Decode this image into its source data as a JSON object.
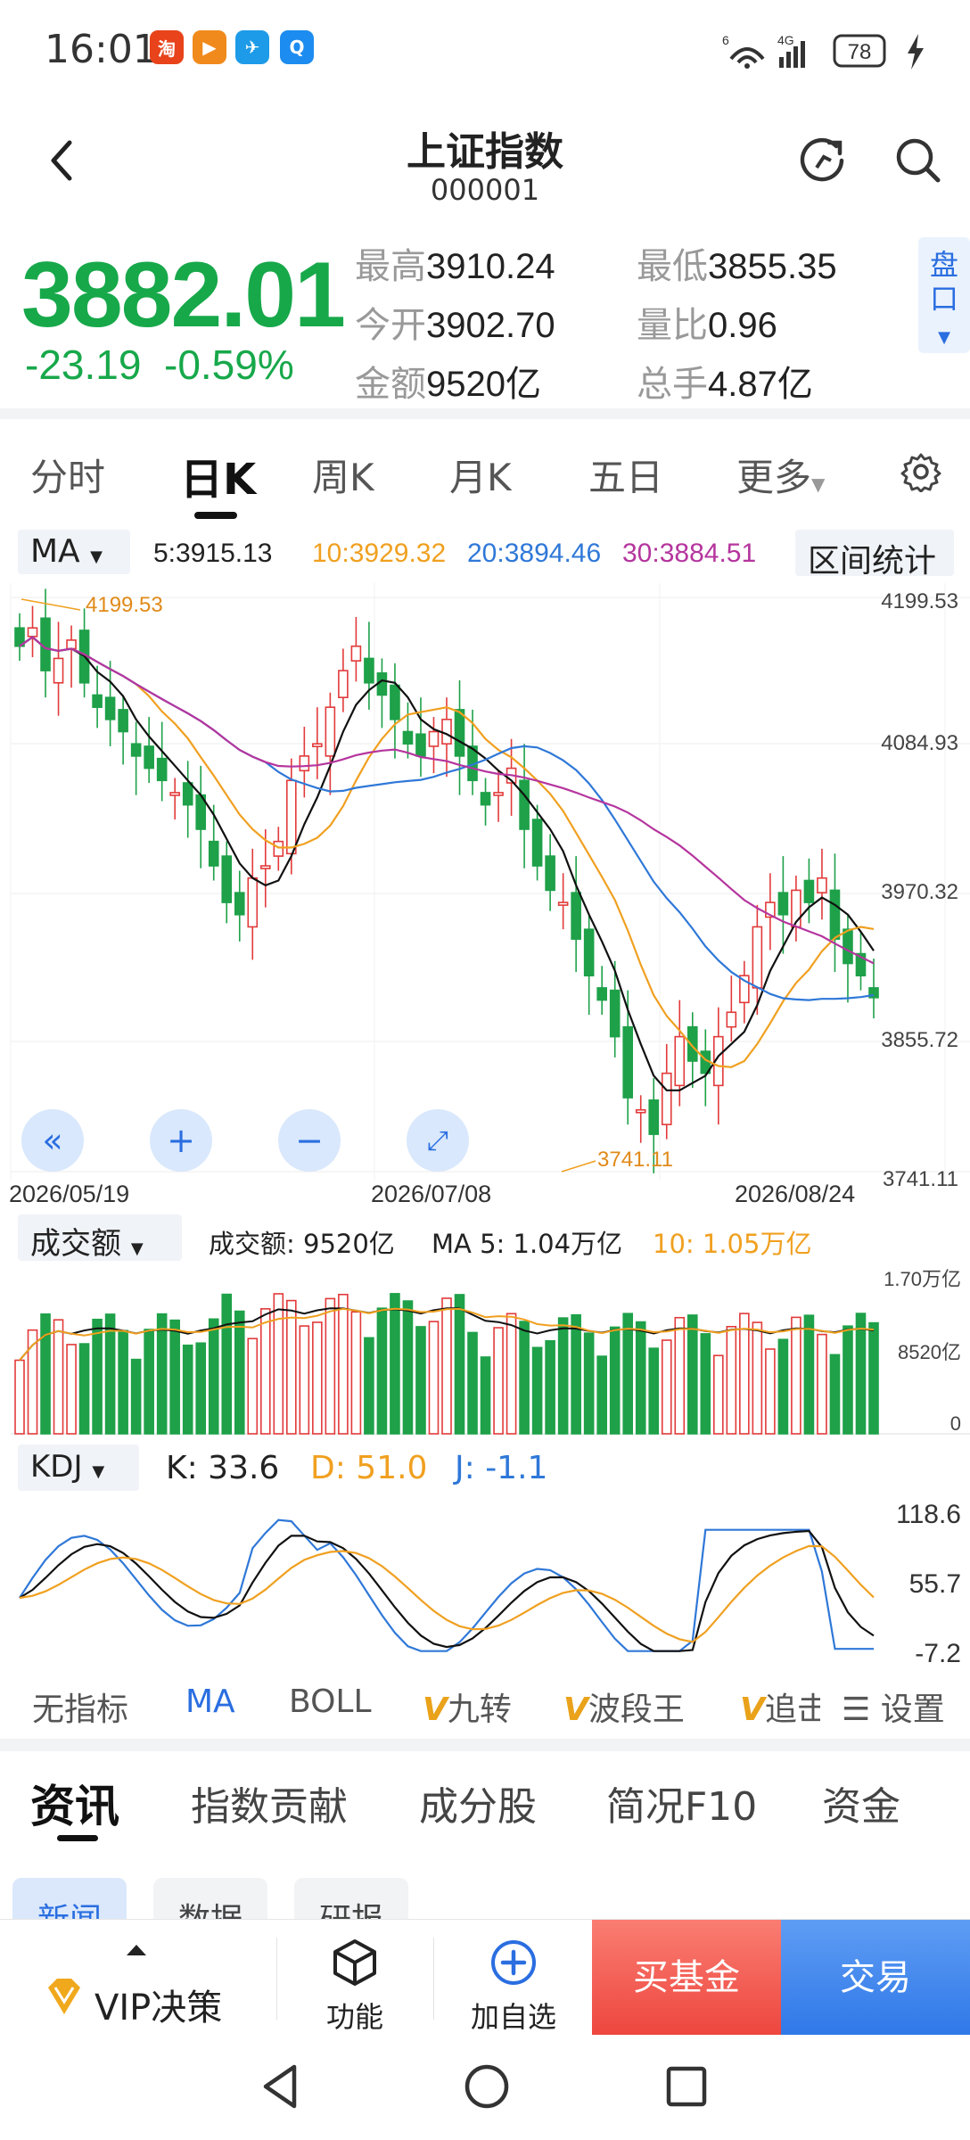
{
  "status_bar": {
    "time": "16:01",
    "network_a": "6",
    "network_b": "4G",
    "battery": "78",
    "apps": [
      {
        "icon": "taobao-app-icon",
        "label": "淘",
        "color": "#e8431a"
      },
      {
        "icon": "video-app-icon",
        "label": "▶",
        "color": "#f08a1c"
      },
      {
        "icon": "paper-plane-app-icon",
        "label": "✈",
        "color": "#1e9be8"
      },
      {
        "icon": "search-app-icon",
        "label": "Q",
        "color": "#1c8cf0"
      }
    ]
  },
  "header": {
    "title": "上证指数",
    "code": "000001"
  },
  "quote": {
    "price": "3882.01",
    "change": "-23.19",
    "change_pct": "-0.59%",
    "high_label": "最高",
    "high": "3910.24",
    "low_label": "最低",
    "low": "3855.35",
    "open_label": "今开",
    "open": "3902.70",
    "ratio_label": "量比",
    "ratio": "0.96",
    "amount_label": "金额",
    "amount": "9520亿",
    "hands_label": "总手",
    "hands": "4.87亿",
    "pankou_label": "盘口"
  },
  "chart_tabs": [
    "分时",
    "日K",
    "周K",
    "月K",
    "五日",
    "更多"
  ],
  "active_chart_tab": "日K",
  "ma_bar": {
    "selector": "MA",
    "ma5": "5:3915.13",
    "ma10": "10:3929.32",
    "ma20": "20:3894.46",
    "ma30": "30:3884.51",
    "range_btn": "区间统计"
  },
  "colors": {
    "up": "#e23a3a",
    "down": "#1ea149",
    "ma5": "#111111",
    "ma10": "#f0a020",
    "ma20": "#2f78d8",
    "ma30": "#b5359e",
    "accent": "#2a6ee0"
  },
  "kline": {
    "y_labels": [
      "4199.53",
      "4084.93",
      "3970.32",
      "3855.72",
      "3741.11"
    ],
    "max_marker": "4199.53",
    "min_marker": "3741.11",
    "dates": [
      "2026/05/19",
      "2026/07/08",
      "2026/08/24"
    ]
  },
  "volume": {
    "selector": "成交额",
    "amount_text": "成交额: 9520亿",
    "ma5_text": "MA 5: 1.04万亿",
    "ma10_text": "10: 1.05万亿",
    "y_labels": [
      "1.70万亿",
      "8520亿",
      "0"
    ]
  },
  "kdj": {
    "selector": "KDJ",
    "k_text": "K: 33.6",
    "d_text": "D: 51.0",
    "j_text": "J: -1.1",
    "y_labels": [
      "118.6",
      "55.7",
      "-7.2"
    ]
  },
  "indicator_tabs": [
    "无指标",
    "MA",
    "BOLL",
    "九转",
    "波段王",
    "追击"
  ],
  "indicator_settings": "设置",
  "news_tabs": [
    "资讯",
    "指数贡献",
    "成分股",
    "简况F10",
    "资金"
  ],
  "news_subtabs": [
    "新闻",
    "数据",
    "研报"
  ],
  "bottom_bar": {
    "vip": "VIP决策",
    "func": "功能",
    "add": "加自选",
    "buy": "买基金",
    "trade": "交易"
  }
}
